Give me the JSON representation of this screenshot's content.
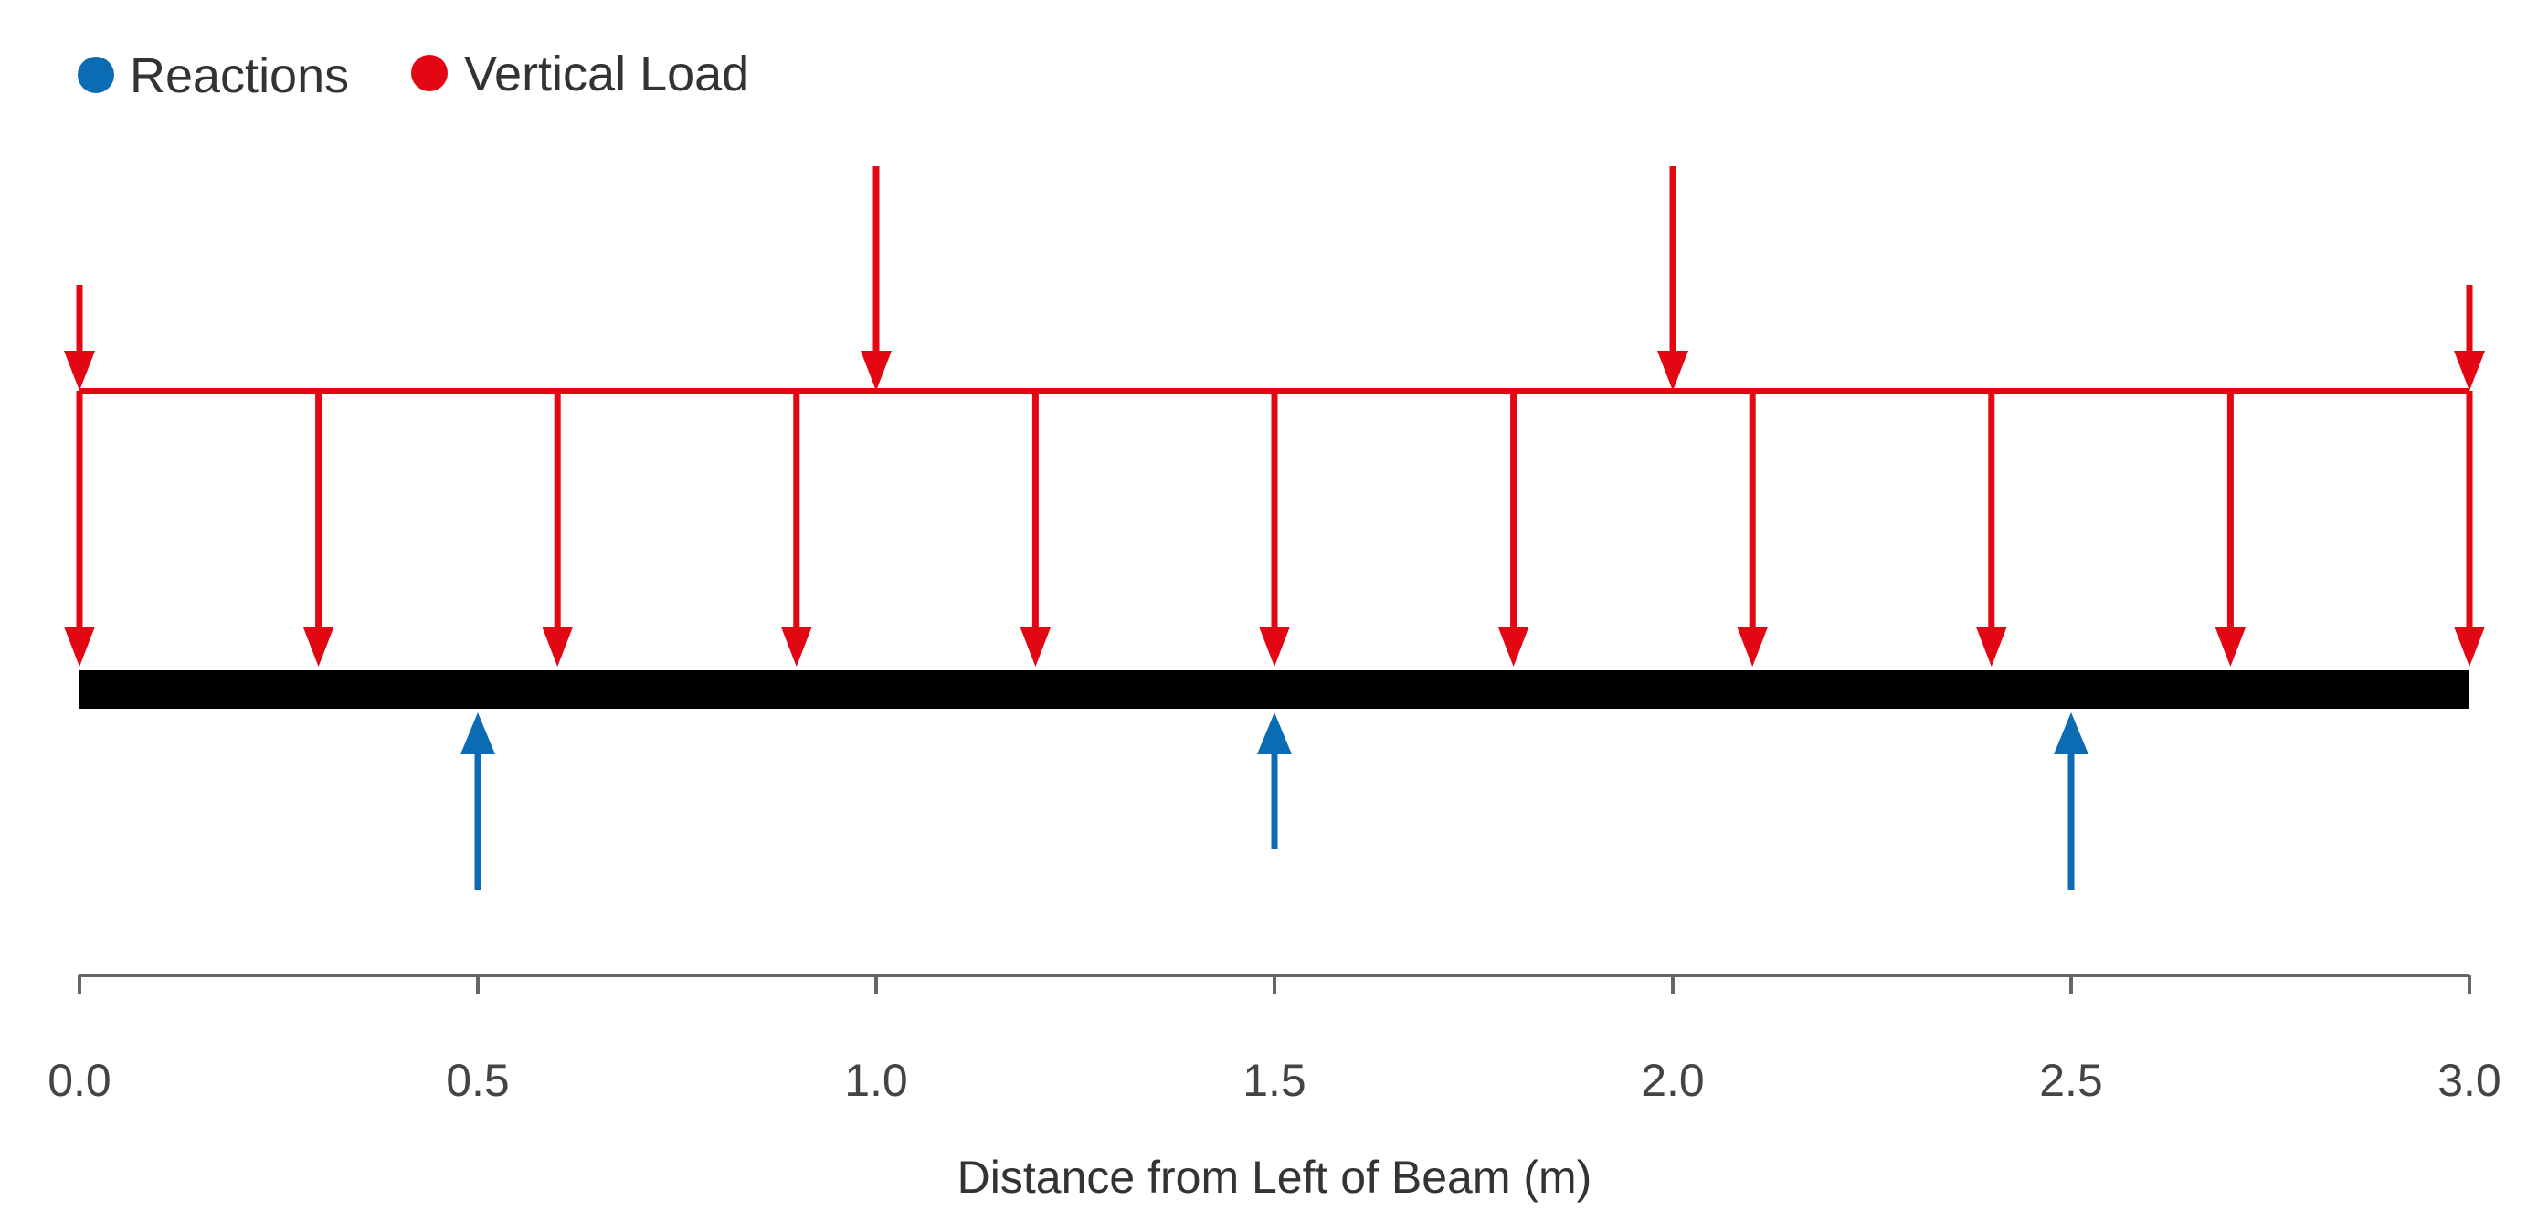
{
  "legend": [
    {
      "label": "Reactions",
      "color": "#0b6cb3"
    },
    {
      "label": "Vertical Load",
      "color": "#e30613"
    }
  ],
  "colors": {
    "load": "#e30613",
    "reaction": "#0b6cb3",
    "beam": "#000000",
    "axis": "#666666"
  },
  "axis": {
    "title": "Distance from Left of Beam (m)",
    "range": [
      0,
      3
    ],
    "ticks": [
      "0.0",
      "0.5",
      "1.0",
      "1.5",
      "2.0",
      "2.5",
      "3.0"
    ]
  },
  "chart_data": {
    "type": "beam-load-diagram",
    "beam": {
      "start": 0.0,
      "end": 3.0
    },
    "distributed_load": {
      "start": 0.0,
      "end": 3.0,
      "arrow_positions": [
        0.0,
        0.3,
        0.6,
        0.9,
        1.2,
        1.5,
        1.8,
        2.1,
        2.4,
        2.7,
        3.0
      ]
    },
    "point_loads": [
      {
        "x": 0.0,
        "size": "short"
      },
      {
        "x": 1.0,
        "size": "tall"
      },
      {
        "x": 2.0,
        "size": "tall"
      },
      {
        "x": 3.0,
        "size": "short"
      }
    ],
    "reactions": [
      {
        "x": 0.5,
        "size": "long"
      },
      {
        "x": 1.5,
        "size": "short"
      },
      {
        "x": 2.5,
        "size": "long"
      }
    ]
  }
}
